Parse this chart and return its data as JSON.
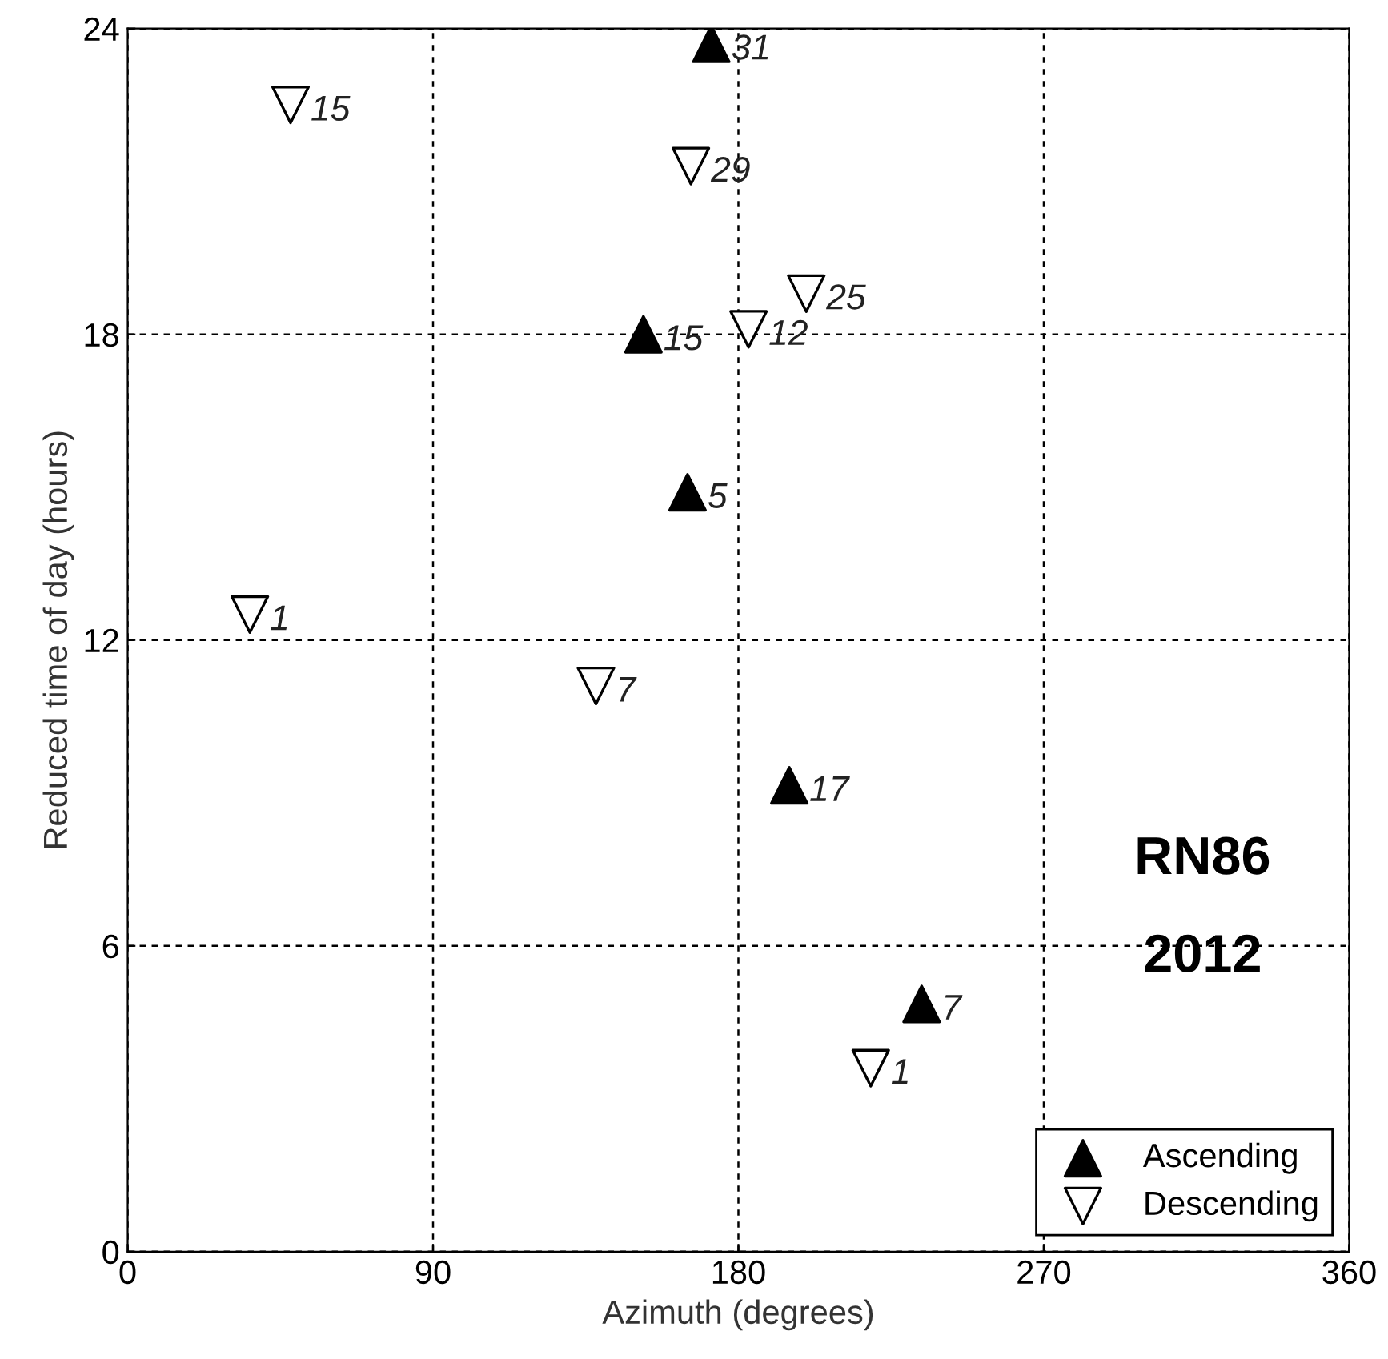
{
  "chart_data": {
    "type": "scatter",
    "xlabel": "Azimuth (degrees)",
    "ylabel": "Reduced time of day (hours)",
    "xlim": [
      0,
      360
    ],
    "xticks": [
      0,
      90,
      180,
      270,
      360
    ],
    "ylim": [
      0,
      24
    ],
    "yticks": [
      0,
      6,
      12,
      18,
      24
    ],
    "grid": true,
    "legend": "bottom right",
    "series": [
      {
        "name": "Ascending",
        "color": "#000000",
        "marker": "triangle",
        "x": [
          172,
          152,
          165,
          195,
          234
        ],
        "values": [
          23.7,
          18.0,
          14.9,
          9.15,
          4.86
        ]
      },
      {
        "name": "Descending",
        "color": "#ffffff",
        "marker": "triangle_down",
        "x": [
          48,
          166,
          183,
          200,
          36,
          138,
          219
        ],
        "values": [
          22.5,
          21.3,
          18.1,
          18.8,
          12.5,
          11.1,
          3.6
        ]
      }
    ],
    "annotations": [
      {
        "text": "31",
        "x": 172,
        "y": 23.7
      },
      {
        "text": "15",
        "x": 152,
        "y": 18.0
      },
      {
        "text": "5",
        "x": 165,
        "y": 14.9
      },
      {
        "text": "17",
        "x": 195,
        "y": 9.15
      },
      {
        "text": "7",
        "x": 234,
        "y": 4.86
      },
      {
        "text": "15",
        "x": 48,
        "y": 22.5
      },
      {
        "text": "29",
        "x": 166,
        "y": 21.3
      },
      {
        "text": "12",
        "x": 183,
        "y": 18.1
      },
      {
        "text": "25",
        "x": 200,
        "y": 18.8
      },
      {
        "text": "1",
        "x": 36,
        "y": 12.5
      },
      {
        "text": "7",
        "x": 138,
        "y": 11.1
      },
      {
        "text": "1",
        "x": 219,
        "y": 3.6
      },
      "RN86",
      "2012"
    ]
  }
}
